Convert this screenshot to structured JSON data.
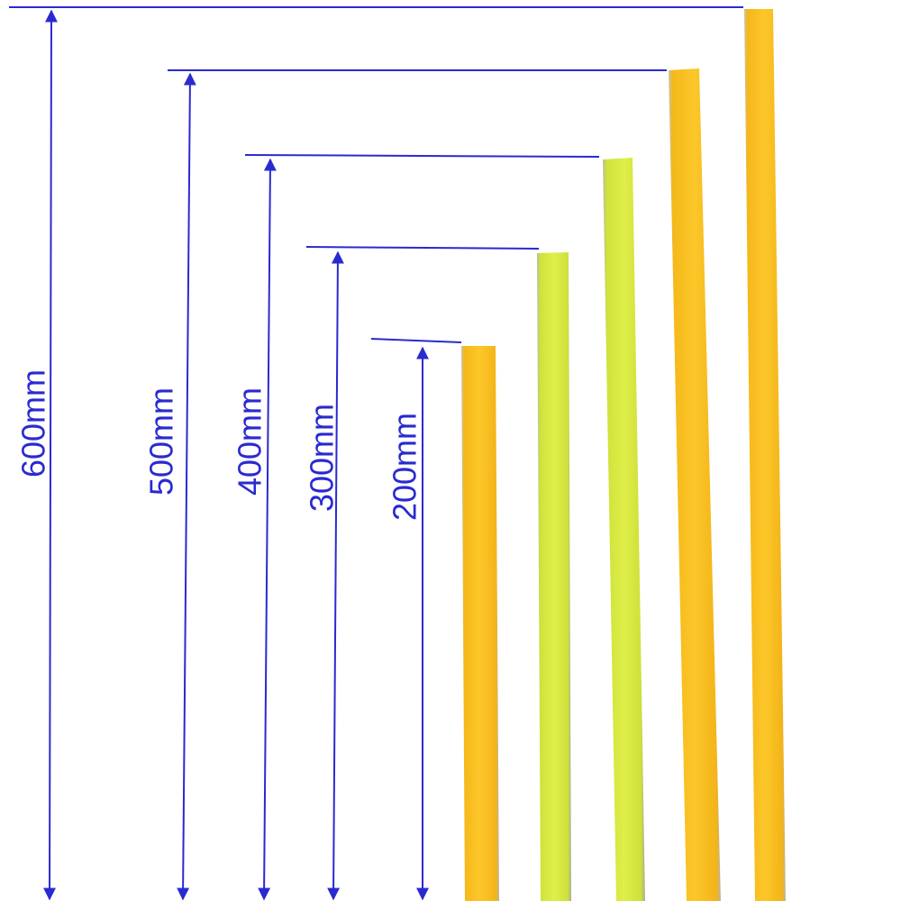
{
  "dimensions": [
    {
      "label": "600mm"
    },
    {
      "label": "500mm"
    },
    {
      "label": "400mm"
    },
    {
      "label": "300mm"
    },
    {
      "label": "200mm"
    }
  ]
}
